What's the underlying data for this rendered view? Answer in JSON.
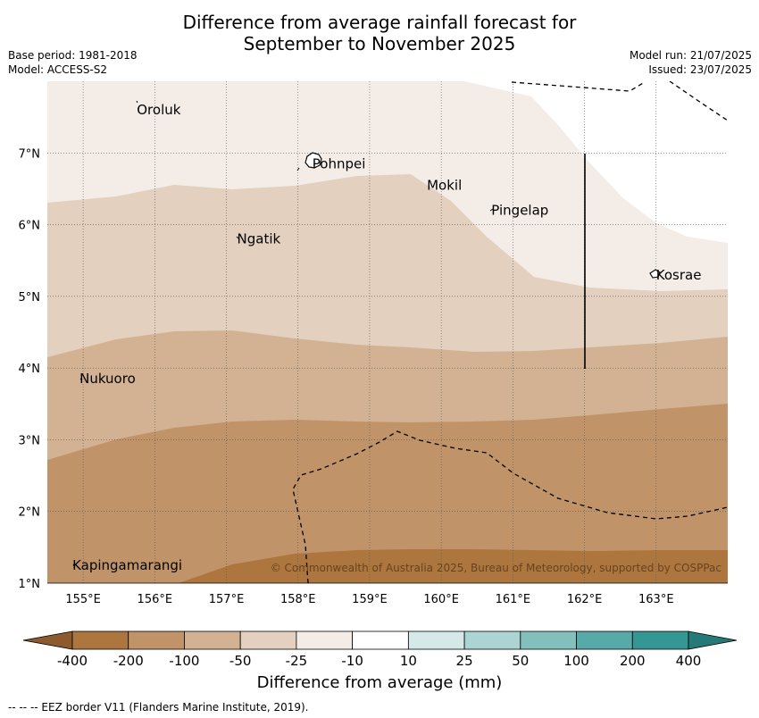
{
  "title_line1": "Difference from average rainfall forecast for",
  "title_line2": "September to November 2025",
  "meta_left": {
    "base_period": "Base period: 1981-2018",
    "model": "Model: ACCESS-S2"
  },
  "meta_right": {
    "model_run": "Model run: 21/07/2025",
    "issued": "Issued: 23/07/2025"
  },
  "copyright": "© Commonwealth of Australia 2025, Bureau of Meteorology, supported by COSPPac",
  "footer_note": "-- -- -- EEZ border V11 (Flanders Marine Institute, 2019).",
  "colorbar": {
    "title": "Difference from average (mm)",
    "tick_labels": [
      "-400",
      "-200",
      "-100",
      "-50",
      "-25",
      "-10",
      "10",
      "25",
      "50",
      "100",
      "200",
      "400"
    ],
    "colors": [
      "#8c5a2c",
      "#ad763f",
      "#c09468",
      "#d2b293",
      "#e3d0bf",
      "#f4ede7",
      "#ffffff",
      "#d5e9e8",
      "#acd4d2",
      "#82bfbd",
      "#58aaa8",
      "#359794",
      "#257a77"
    ]
  },
  "map": {
    "lon_range": [
      154.5,
      164.0
    ],
    "lat_range": [
      1.0,
      8.0
    ],
    "lon_ticks": [
      "155°E",
      "156°E",
      "157°E",
      "158°E",
      "159°E",
      "160°E",
      "161°E",
      "162°E",
      "163°E"
    ],
    "lat_ticks": [
      "1°N",
      "2°N",
      "3°N",
      "4°N",
      "5°N",
      "6°N",
      "7°N"
    ],
    "places": [
      {
        "name": "Oroluk",
        "lon": 155.75,
        "lat": 7.6
      },
      {
        "name": "Pohnpei",
        "lon": 158.2,
        "lat": 6.85
      },
      {
        "name": "Mokil",
        "lon": 159.8,
        "lat": 6.55
      },
      {
        "name": "Pingelap",
        "lon": 160.7,
        "lat": 6.2
      },
      {
        "name": "Ngatik",
        "lon": 157.15,
        "lat": 5.8
      },
      {
        "name": "Kosrae",
        "lon": 163.0,
        "lat": 5.3
      },
      {
        "name": "Nukuoro",
        "lon": 154.95,
        "lat": 3.85
      },
      {
        "name": "Kapingamarangi",
        "lon": 154.85,
        "lat": 1.25
      }
    ]
  }
}
